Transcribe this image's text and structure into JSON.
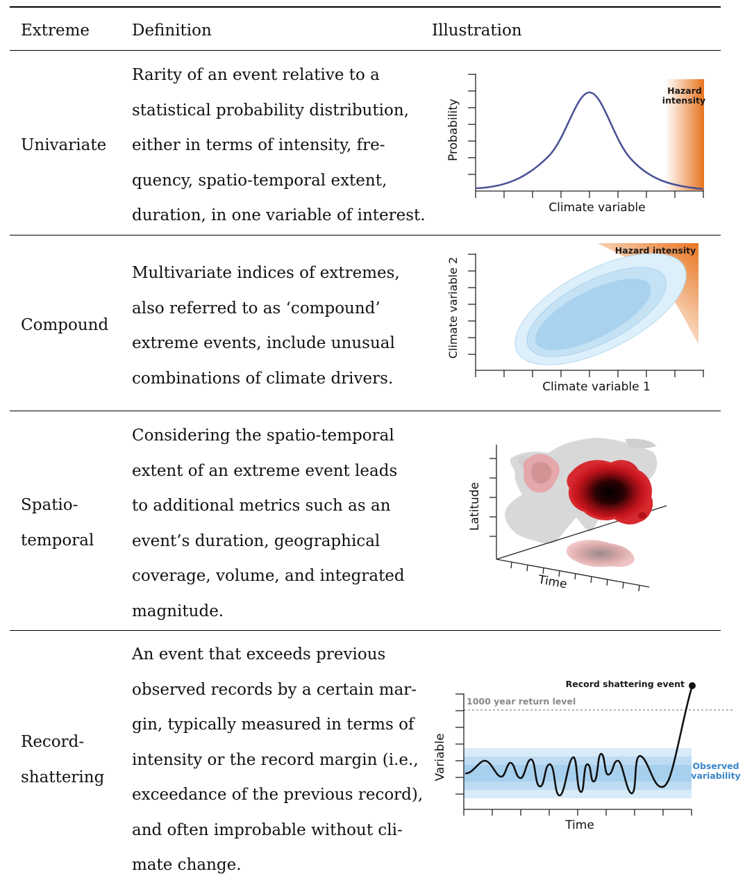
{
  "table": {
    "headers": {
      "extreme": "Extreme",
      "definition": "Definition",
      "illustration": "Illustration"
    },
    "rows": [
      {
        "name": [
          "Univariate"
        ],
        "definition": [
          "Rarity of an event relative to a",
          "statistical probability distribution,",
          "either in terms of intensity, fre-",
          "quency, spatio-temporal extent,",
          "duration, in one variable of interest."
        ],
        "illustration": {
          "ylabel": "Probability",
          "xlabel": "Climate variable",
          "hazard": [
            "Hazard",
            "intensity"
          ]
        }
      },
      {
        "name": [
          "Compound"
        ],
        "definition": [
          "Multivariate indices of extremes,",
          "also referred to as ‘compound’",
          "extreme events, include unusual",
          "combinations of climate drivers."
        ],
        "illustration": {
          "ylabel": "Climate variable 2",
          "xlabel": "Climate variable 1",
          "hazard": "Hazard intensity"
        }
      },
      {
        "name": [
          "Spatio-",
          "temporal"
        ],
        "definition": [
          "Considering the spatio-temporal",
          "extent of an extreme event leads",
          "to additional metrics such as an",
          "event’s duration, geographical",
          "coverage, volume, and integrated",
          "magnitude."
        ],
        "illustration": {
          "ylabel": "Latitude",
          "xlabel": "Time"
        }
      },
      {
        "name": [
          "Record-",
          "shattering"
        ],
        "definition": [
          "An event that exceeds previous",
          "observed records by a certain mar-",
          "gin, typically measured in terms of",
          "intensity or the record margin (i.e.,",
          "exceedance of the previous record),",
          "and often improbable without cli-",
          "mate change."
        ],
        "illustration": {
          "ylabel": "Variable",
          "xlabel": "Time",
          "event_label": "Record shattering event",
          "return_level": "1000 year return level",
          "observed": [
            "Observed",
            "variability"
          ]
        }
      }
    ]
  },
  "colors": {
    "curve": "#4a5296",
    "hazard": "#e8741e",
    "ellipse": "#a9d2ee",
    "heat": "#c8151d",
    "band": "#4a9ad6",
    "observed_label": "#3a86c8",
    "return_line": "#888888"
  }
}
